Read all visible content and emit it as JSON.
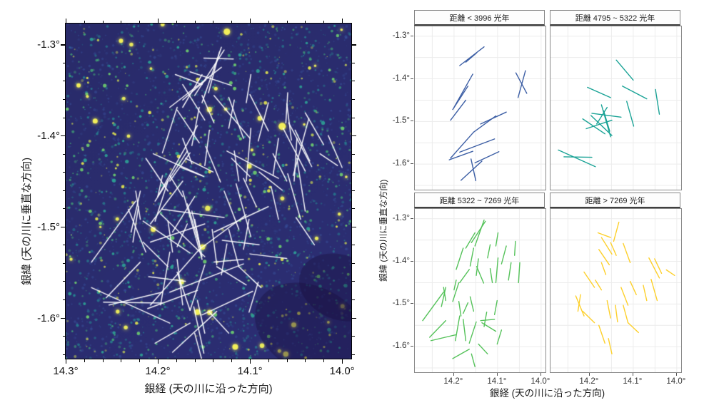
{
  "left_figure": {
    "xlabel": "銀経 (天の川に沿った方向)",
    "ylabel": "銀緯 (天の川に垂直な方向)",
    "x_tick_labels": [
      "14.3°",
      "14.2°",
      "14.1°",
      "14.0°"
    ],
    "y_tick_labels": [
      "-1.3°",
      "-1.4°",
      "-1.5°",
      "-1.6°"
    ],
    "overlay_color": "#ffffff"
  },
  "right_figure": {
    "xlabel": "銀経 (天の川に沿った方向)",
    "ylabel": "銀緯 (天の川に垂直な方向)",
    "x_tick_labels": [
      "14.2°",
      "14.1°",
      "14.0°"
    ],
    "y_tick_labels": [
      "-1.3°",
      "-1.4°",
      "-1.5°",
      "-1.6°"
    ]
  },
  "chart_data": {
    "type": "scatter",
    "subtype": "orientation-line-segments",
    "title": "",
    "xlabel": "銀経 (天の川に沿った方向)",
    "ylabel": "銀緯 (天の川に垂直な方向)",
    "x_axis_reversed": true,
    "left_x_range": [
      14.3,
      13.99
    ],
    "left_y_range": [
      -1.277,
      -1.645
    ],
    "right_x_range": [
      14.29,
      13.99
    ],
    "right_y_range": [
      -1.277,
      -1.66
    ],
    "x_ticks": [
      14.3,
      14.2,
      14.1,
      14.0
    ],
    "right_x_ticks": [
      14.2,
      14.1,
      14.0
    ],
    "y_ticks": [
      -1.3,
      -1.4,
      -1.5,
      -1.6
    ],
    "grid_step": 0.05,
    "series": [
      {
        "name": "距離 < 3996 光年",
        "color": "#3d5fa5",
        "segments": [
          [
            14.187,
            -1.369,
            14.131,
            -1.325
          ],
          [
            14.173,
            -1.361,
            14.148,
            -1.339
          ],
          [
            14.2,
            -1.467,
            14.157,
            -1.389
          ],
          [
            14.203,
            -1.472,
            14.168,
            -1.417
          ],
          [
            14.208,
            -1.497,
            14.173,
            -1.45
          ],
          [
            14.053,
            -1.444,
            14.036,
            -1.381
          ],
          [
            14.058,
            -1.386,
            14.033,
            -1.434
          ],
          [
            14.139,
            -1.506,
            14.08,
            -1.478
          ],
          [
            14.155,
            -1.525,
            14.104,
            -1.487
          ],
          [
            14.208,
            -1.586,
            14.155,
            -1.525
          ],
          [
            14.187,
            -1.572,
            14.107,
            -1.541
          ],
          [
            14.211,
            -1.59,
            14.157,
            -1.57
          ],
          [
            14.152,
            -1.597,
            14.097,
            -1.571
          ],
          [
            14.184,
            -1.638,
            14.136,
            -1.593
          ],
          [
            14.161,
            -1.588,
            14.15,
            -1.639
          ]
        ]
      },
      {
        "name": "距離 4795 ~ 5322 光年",
        "color": "#1aa396",
        "segments": [
          [
            14.139,
            -1.356,
            14.1,
            -1.403
          ],
          [
            14.205,
            -1.42,
            14.152,
            -1.444
          ],
          [
            14.125,
            -1.417,
            14.069,
            -1.447
          ],
          [
            14.049,
            -1.425,
            14.04,
            -1.483
          ],
          [
            14.115,
            -1.453,
            14.099,
            -1.511
          ],
          [
            14.173,
            -1.461,
            14.152,
            -1.536
          ],
          [
            14.195,
            -1.481,
            14.128,
            -1.49
          ],
          [
            14.197,
            -1.486,
            14.149,
            -1.533
          ],
          [
            14.216,
            -1.494,
            14.165,
            -1.529
          ],
          [
            14.208,
            -1.517,
            14.149,
            -1.497
          ],
          [
            14.184,
            -1.506,
            14.16,
            -1.467
          ],
          [
            14.168,
            -1.475,
            14.154,
            -1.523
          ],
          [
            14.272,
            -1.567,
            14.187,
            -1.606
          ],
          [
            14.259,
            -1.583,
            14.195,
            -1.584
          ]
        ]
      },
      {
        "name": "距離 5322 ~ 7269 光年",
        "color": "#55c25a",
        "segments": [
          [
            14.152,
            -1.364,
            14.131,
            -1.303
          ],
          [
            14.128,
            -1.306,
            14.16,
            -1.356
          ],
          [
            14.152,
            -1.333,
            14.173,
            -1.369
          ],
          [
            14.099,
            -1.333,
            14.104,
            -1.364
          ],
          [
            14.179,
            -1.369,
            14.195,
            -1.419
          ],
          [
            14.155,
            -1.369,
            14.163,
            -1.411
          ],
          [
            14.117,
            -1.361,
            14.123,
            -1.392
          ],
          [
            14.08,
            -1.364,
            14.091,
            -1.406
          ],
          [
            14.059,
            -1.353,
            14.061,
            -1.386
          ],
          [
            14.144,
            -1.394,
            14.149,
            -1.433
          ],
          [
            14.099,
            -1.392,
            14.104,
            -1.45
          ],
          [
            14.069,
            -1.403,
            14.075,
            -1.444
          ],
          [
            14.049,
            -1.403,
            14.052,
            -1.45
          ],
          [
            14.165,
            -1.419,
            14.187,
            -1.45
          ],
          [
            14.148,
            -1.412,
            14.132,
            -1.451
          ],
          [
            14.195,
            -1.444,
            14.2,
            -1.467
          ],
          [
            14.117,
            -1.417,
            14.112,
            -1.45
          ],
          [
            14.224,
            -1.461,
            14.219,
            -1.492
          ],
          [
            14.219,
            -1.461,
            14.229,
            -1.506
          ],
          [
            14.203,
            -1.494,
            14.189,
            -1.45
          ],
          [
            14.189,
            -1.494,
            14.184,
            -1.528
          ],
          [
            14.179,
            -1.522,
            14.168,
            -1.497
          ],
          [
            14.163,
            -1.483,
            14.155,
            -1.517
          ],
          [
            14.272,
            -1.539,
            14.224,
            -1.472
          ],
          [
            14.256,
            -1.578,
            14.219,
            -1.539
          ],
          [
            14.253,
            -1.586,
            14.195,
            -1.572
          ],
          [
            14.197,
            -1.586,
            14.187,
            -1.528
          ],
          [
            14.179,
            -1.536,
            14.173,
            -1.586
          ],
          [
            14.165,
            -1.592,
            14.149,
            -1.542
          ],
          [
            14.139,
            -1.539,
            14.107,
            -1.536
          ],
          [
            14.136,
            -1.544,
            14.104,
            -1.564
          ],
          [
            14.125,
            -1.519,
            14.131,
            -1.553
          ],
          [
            14.107,
            -1.525,
            14.101,
            -1.492
          ],
          [
            14.16,
            -1.617,
            14.152,
            -1.647
          ],
          [
            14.203,
            -1.628,
            14.165,
            -1.606
          ],
          [
            14.144,
            -1.594,
            14.123,
            -1.617
          ],
          [
            14.101,
            -1.594,
            14.091,
            -1.561
          ]
        ]
      },
      {
        "name": "距離 > 7269 光年",
        "color": "#fdd02b",
        "segments": [
          [
            14.133,
            -1.308,
            14.145,
            -1.353
          ],
          [
            14.181,
            -1.333,
            14.152,
            -1.344
          ],
          [
            14.173,
            -1.344,
            14.149,
            -1.383
          ],
          [
            14.179,
            -1.372,
            14.155,
            -1.408
          ],
          [
            14.152,
            -1.356,
            14.139,
            -1.386
          ],
          [
            14.123,
            -1.358,
            14.107,
            -1.403
          ],
          [
            14.064,
            -1.392,
            14.04,
            -1.439
          ],
          [
            14.051,
            -1.394,
            14.035,
            -1.428
          ],
          [
            14.024,
            -1.42,
            14.005,
            -1.433
          ],
          [
            14.173,
            -1.403,
            14.163,
            -1.431
          ],
          [
            14.213,
            -1.425,
            14.189,
            -1.461
          ],
          [
            14.187,
            -1.444,
            14.173,
            -1.467
          ],
          [
            14.128,
            -1.461,
            14.112,
            -1.503
          ],
          [
            14.107,
            -1.447,
            14.093,
            -1.478
          ],
          [
            14.077,
            -1.456,
            14.069,
            -1.492
          ],
          [
            14.059,
            -1.442,
            14.045,
            -1.492
          ],
          [
            14.232,
            -1.481,
            14.213,
            -1.528
          ],
          [
            14.221,
            -1.478,
            14.227,
            -1.517
          ],
          [
            14.216,
            -1.517,
            14.189,
            -1.544
          ],
          [
            14.16,
            -1.492,
            14.152,
            -1.533
          ],
          [
            14.141,
            -1.503,
            14.136,
            -1.542
          ],
          [
            14.123,
            -1.503,
            14.112,
            -1.544
          ],
          [
            14.112,
            -1.544,
            14.088,
            -1.567
          ],
          [
            14.179,
            -1.55,
            14.165,
            -1.592
          ],
          [
            14.157,
            -1.581,
            14.149,
            -1.617
          ]
        ]
      }
    ],
    "left_panel_only_segments": [
      [
        14.15,
        -1.315,
        14.118,
        -1.316
      ],
      [
        14.165,
        -1.33,
        14.12,
        -1.345
      ],
      [
        14.1,
        -1.355,
        14.08,
        -1.395
      ],
      [
        14.06,
        -1.365,
        14.055,
        -1.405
      ],
      [
        14.04,
        -1.375,
        14.02,
        -1.41
      ],
      [
        14.015,
        -1.4,
        14.0,
        -1.435
      ],
      [
        14.17,
        -1.425,
        14.14,
        -1.44
      ],
      [
        14.175,
        -1.435,
        14.15,
        -1.445
      ],
      [
        14.09,
        -1.44,
        14.065,
        -1.46
      ],
      [
        14.075,
        -1.42,
        14.06,
        -1.45
      ],
      [
        14.12,
        -1.425,
        14.1,
        -1.445
      ],
      [
        14.13,
        -1.515,
        14.09,
        -1.52
      ],
      [
        14.1,
        -1.53,
        14.06,
        -1.535
      ],
      [
        14.05,
        -1.49,
        14.03,
        -1.52
      ],
      [
        14.21,
        -1.555,
        14.17,
        -1.56
      ]
    ]
  }
}
